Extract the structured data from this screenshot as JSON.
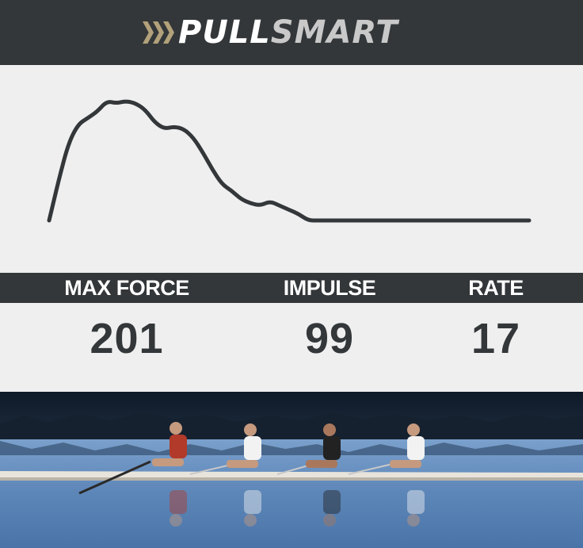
{
  "header": {
    "logo_text_a": "PULL",
    "logo_text_b": "SMART",
    "logo_icon": "triple-chevron-icon"
  },
  "chart_data": {
    "type": "line",
    "title": "",
    "xlabel": "",
    "ylabel": "",
    "grid": false,
    "legend": "none",
    "color": "#333739",
    "x": [
      0,
      2,
      4,
      6,
      8,
      10,
      12,
      14,
      16,
      18,
      20,
      22,
      24,
      26,
      28,
      30,
      32,
      34,
      36,
      38,
      40,
      42,
      44,
      46,
      48,
      50,
      52,
      54,
      56,
      58,
      60,
      62,
      64,
      66,
      68,
      70,
      72,
      74,
      76,
      78,
      80,
      82,
      84,
      86,
      88,
      90,
      92,
      94,
      96,
      98,
      100
    ],
    "y": [
      0,
      38,
      72,
      90,
      96,
      102,
      112,
      110,
      112,
      110,
      104,
      92,
      86,
      88,
      86,
      78,
      64,
      48,
      34,
      28,
      20,
      16,
      14,
      18,
      14,
      10,
      6,
      0,
      0,
      0,
      0,
      0,
      0,
      0,
      0,
      0,
      0,
      0,
      0,
      0,
      0,
      0,
      0,
      0,
      0,
      0,
      0,
      0,
      0,
      0,
      0
    ],
    "xlim": [
      0,
      100
    ],
    "ylim": [
      0,
      125
    ]
  },
  "stats": [
    {
      "label": "MAX FORCE",
      "value": "201"
    },
    {
      "label": "IMPULSE",
      "value": "99"
    },
    {
      "label": "RATE",
      "value": "17"
    }
  ],
  "photo": {
    "subject": "rowing-crew-photo"
  }
}
